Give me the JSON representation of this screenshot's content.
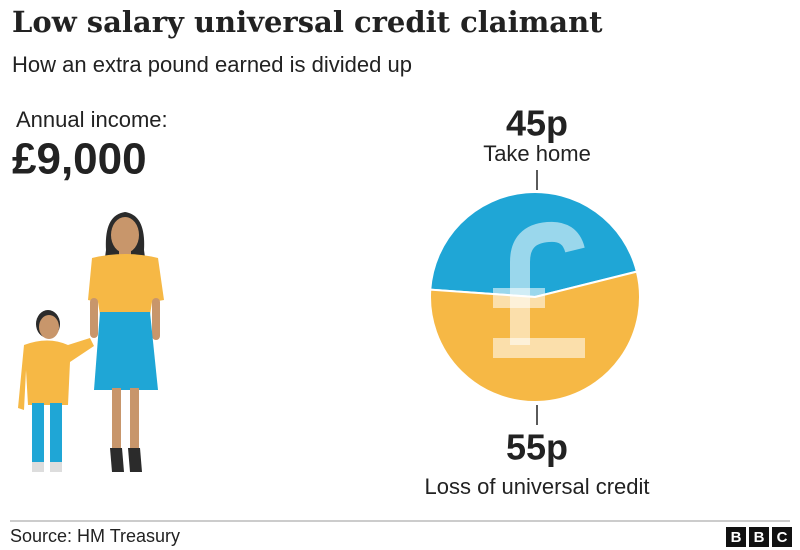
{
  "chart_data": {
    "type": "pie",
    "title": "Low salary universal credit claimant",
    "subtitle": "How an extra pound earned is divided up",
    "annotations": [
      "Annual income:",
      "£9,000"
    ],
    "categories": [
      "Take home",
      "Loss of universal credit"
    ],
    "values": [
      45,
      55
    ],
    "value_labels": [
      "45p",
      "55p"
    ],
    "colors": [
      "#1fa6d6",
      "#f6b845"
    ],
    "source": "Source: HM Treasury",
    "logo": [
      "B",
      "B",
      "C"
    ]
  }
}
